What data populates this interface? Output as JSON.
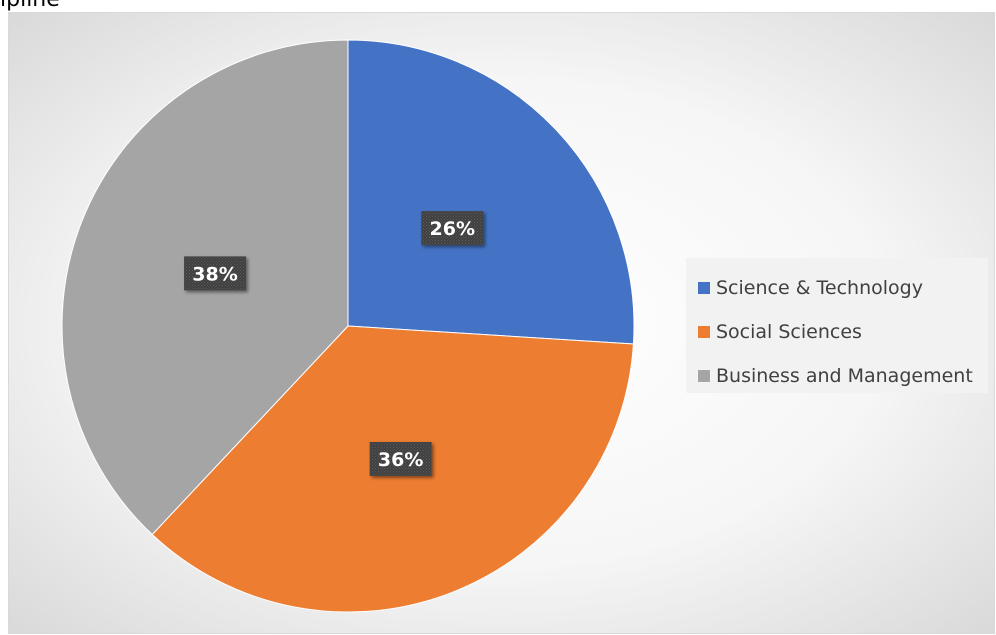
{
  "caption": "ipline",
  "chart_data": {
    "type": "pie",
    "title": "",
    "legend_position": "right",
    "slices": [
      {
        "name": "Science & Technology",
        "value": 26,
        "label": "26%",
        "color": "#4472c4"
      },
      {
        "name": "Social Sciences",
        "value": 36,
        "label": "36%",
        "color": "#ed7d31"
      },
      {
        "name": "Business and Management",
        "value": 38,
        "label": "38%",
        "color": "#a5a5a5"
      }
    ]
  }
}
